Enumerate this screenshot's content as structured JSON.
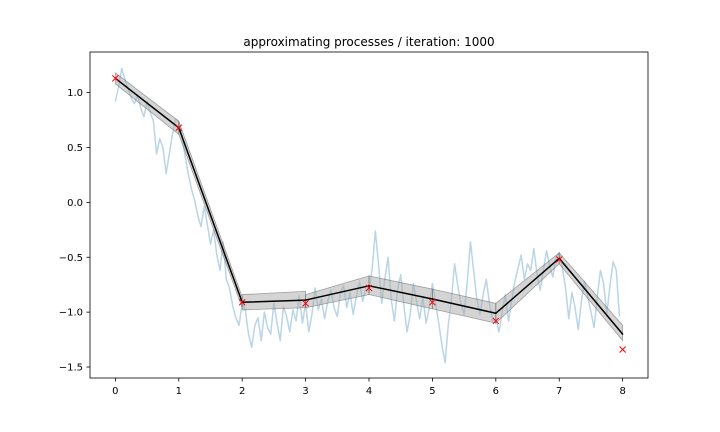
{
  "chart_data": {
    "type": "line",
    "title": "approximating processes / iteration: 1000",
    "xlabel": "",
    "ylabel": "",
    "xlim": [
      -0.4,
      8.4
    ],
    "ylim": [
      -1.6,
      1.37
    ],
    "grid": false,
    "x_ticks": [
      "0",
      "1",
      "2",
      "3",
      "4",
      "5",
      "6",
      "7",
      "8"
    ],
    "y_ticks": [
      "1.0",
      "0.5",
      "0.0",
      "−0.5",
      "−1.0",
      "−1.5"
    ],
    "x_tick_values": [
      0,
      1,
      2,
      3,
      4,
      5,
      6,
      7,
      8
    ],
    "y_tick_values": [
      1.0,
      0.5,
      0.0,
      -0.5,
      -1.0,
      -1.5
    ],
    "colors": {
      "approximation": "#000000",
      "band": "#a9a9a9",
      "observations": "#ff0000",
      "noisy_path": "#b9d5e6"
    },
    "series": [
      {
        "type": "line",
        "segments": [
          {
            "x": [
              0,
              1
            ],
            "y": [
              1.13,
              0.68
            ]
          },
          {
            "x": [
              1,
              2
            ],
            "y": [
              0.68,
              -0.91
            ]
          },
          {
            "x": [
              2,
              3
            ],
            "y": [
              -0.91,
              -0.89
            ]
          },
          {
            "x": [
              3,
              4
            ],
            "y": [
              -0.89,
              -0.76
            ]
          },
          {
            "x": [
              4,
              5
            ],
            "y": [
              -0.76,
              -0.88
            ]
          },
          {
            "x": [
              5,
              6
            ],
            "y": [
              -0.88,
              -1.01
            ]
          },
          {
            "x": [
              6,
              7
            ],
            "y": [
              -1.01,
              -0.51
            ]
          },
          {
            "x": [
              7,
              8
            ],
            "y": [
              -0.51,
              -1.2
            ]
          }
        ]
      },
      {
        "type": "band",
        "segments": [
          {
            "x": [
              0,
              1
            ],
            "lower": [
              1.08,
              0.62
            ],
            "upper": [
              1.18,
              0.74
            ]
          },
          {
            "x": [
              1,
              2
            ],
            "lower": [
              0.62,
              -0.96
            ],
            "upper": [
              0.74,
              -0.86
            ]
          },
          {
            "x": [
              2,
              3
            ],
            "lower": [
              -0.98,
              -0.96
            ],
            "upper": [
              -0.84,
              -0.81
            ]
          },
          {
            "x": [
              3,
              4
            ],
            "lower": [
              -0.96,
              -0.84
            ],
            "upper": [
              -0.84,
              -0.67
            ]
          },
          {
            "x": [
              4,
              5
            ],
            "lower": [
              -0.84,
              -0.97
            ],
            "upper": [
              -0.67,
              -0.79
            ]
          },
          {
            "x": [
              5,
              6
            ],
            "lower": [
              -0.97,
              -1.1
            ],
            "upper": [
              -0.79,
              -0.92
            ]
          },
          {
            "x": [
              6,
              7
            ],
            "lower": [
              -1.1,
              -0.56
            ],
            "upper": [
              -0.92,
              -0.46
            ]
          },
          {
            "x": [
              7,
              8
            ],
            "lower": [
              -0.56,
              -1.26
            ],
            "upper": [
              -0.46,
              -1.12
            ]
          }
        ]
      },
      {
        "type": "scatter",
        "marker": "x",
        "x": [
          0,
          1,
          2,
          3,
          4,
          5,
          6,
          7,
          8
        ],
        "y": [
          1.13,
          0.68,
          -0.91,
          -0.92,
          -0.78,
          -0.91,
          -1.08,
          -0.52,
          -1.34
        ]
      },
      {
        "type": "line",
        "x": [
          0.0,
          0.05,
          0.1,
          0.15,
          0.2,
          0.25,
          0.3,
          0.35,
          0.4,
          0.45,
          0.5,
          0.55,
          0.6,
          0.65,
          0.7,
          0.75,
          0.8,
          0.85,
          0.9,
          0.95,
          1.0,
          1.05,
          1.1,
          1.15,
          1.2,
          1.25,
          1.3,
          1.35,
          1.4,
          1.45,
          1.5,
          1.55,
          1.6,
          1.65,
          1.7,
          1.75,
          1.8,
          1.85,
          1.9,
          1.95,
          2.0,
          2.05,
          2.1,
          2.15,
          2.2,
          2.25,
          2.3,
          2.35,
          2.4,
          2.45,
          2.5,
          2.55,
          2.6,
          2.65,
          2.7,
          2.75,
          2.8,
          2.85,
          2.9,
          2.95,
          3.0,
          3.05,
          3.1,
          3.15,
          3.2,
          3.25,
          3.3,
          3.35,
          3.4,
          3.45,
          3.5,
          3.55,
          3.6,
          3.65,
          3.7,
          3.75,
          3.8,
          3.85,
          3.9,
          3.95,
          4.0,
          4.05,
          4.1,
          4.15,
          4.2,
          4.25,
          4.3,
          4.35,
          4.4,
          4.45,
          4.5,
          4.55,
          4.6,
          4.65,
          4.7,
          4.75,
          4.8,
          4.85,
          4.9,
          4.95,
          5.0,
          5.05,
          5.1,
          5.15,
          5.2,
          5.25,
          5.3,
          5.35,
          5.4,
          5.45,
          5.5,
          5.55,
          5.6,
          5.65,
          5.7,
          5.75,
          5.8,
          5.85,
          5.9,
          5.95,
          6.0,
          6.05,
          6.1,
          6.15,
          6.2,
          6.25,
          6.3,
          6.35,
          6.4,
          6.45,
          6.5,
          6.55,
          6.6,
          6.65,
          6.7,
          6.75,
          6.8,
          6.85,
          6.9,
          6.95,
          7.0,
          7.05,
          7.1,
          7.15,
          7.2,
          7.25,
          7.3,
          7.35,
          7.4,
          7.45,
          7.5,
          7.55,
          7.6,
          7.65,
          7.7,
          7.75,
          7.8,
          7.85,
          7.9,
          7.95
        ],
        "y": [
          0.92,
          1.05,
          1.22,
          1.12,
          1.04,
          0.95,
          0.9,
          0.98,
          0.86,
          0.78,
          0.92,
          0.82,
          0.74,
          0.44,
          0.58,
          0.5,
          0.26,
          0.44,
          0.62,
          0.76,
          0.73,
          0.6,
          0.42,
          0.26,
          0.12,
          0.02,
          -0.12,
          -0.22,
          -0.04,
          -0.2,
          -0.38,
          -0.25,
          -0.48,
          -0.62,
          -0.36,
          -0.7,
          -0.78,
          -0.94,
          -1.05,
          -1.12,
          -0.92,
          -0.98,
          -1.2,
          -1.32,
          -1.12,
          -1.05,
          -1.26,
          -1.0,
          -1.14,
          -1.2,
          -0.92,
          -1.1,
          -1.26,
          -0.95,
          -1.04,
          -1.18,
          -0.98,
          -1.08,
          -0.85,
          -1.1,
          -0.92,
          -1.18,
          -1.02,
          -0.78,
          -0.98,
          -0.88,
          -1.06,
          -0.9,
          -0.8,
          -0.96,
          -1.04,
          -0.82,
          -0.76,
          -0.96,
          -0.82,
          -1.02,
          -0.86,
          -0.72,
          -0.9,
          -0.78,
          -0.82,
          -0.6,
          -0.26,
          -0.56,
          -0.92,
          -0.7,
          -0.5,
          -0.88,
          -1.08,
          -0.8,
          -0.66,
          -0.94,
          -1.18,
          -1.02,
          -0.74,
          -0.9,
          -1.06,
          -0.86,
          -1.1,
          -0.96,
          -0.74,
          -0.92,
          -1.1,
          -1.3,
          -1.46,
          -1.12,
          -0.88,
          -0.56,
          -0.76,
          -0.92,
          -1.02,
          -0.72,
          -0.36,
          -0.62,
          -0.88,
          -1.02,
          -0.84,
          -0.7,
          -0.92,
          -1.08,
          -1.06,
          -1.18,
          -1.0,
          -0.84,
          -1.08,
          -0.9,
          -0.72,
          -0.6,
          -0.48,
          -0.7,
          -0.56,
          -0.62,
          -0.42,
          -0.66,
          -0.8,
          -0.62,
          -0.44,
          -0.58,
          -0.68,
          -0.5,
          -0.46,
          -0.6,
          -0.78,
          -1.06,
          -0.82,
          -0.96,
          -1.16,
          -0.9,
          -0.72,
          -0.86,
          -1.0,
          -1.14,
          -0.86,
          -0.62,
          -0.74,
          -1.02,
          -0.76,
          -0.54,
          -0.62,
          -1.04
        ]
      }
    ]
  }
}
